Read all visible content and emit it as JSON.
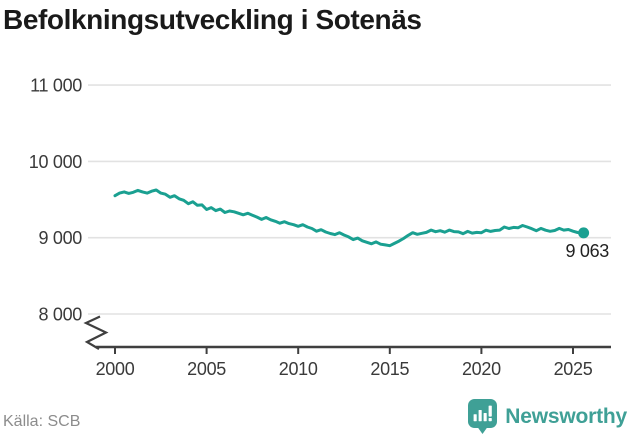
{
  "title": "Befolkningsutveckling i Sotenäs",
  "source": "Källa: SCB",
  "end_label": "9 063",
  "brand": {
    "name": "Newsworthy"
  },
  "colors": {
    "line": "#1aa091",
    "grid": "#e2e2e2",
    "axis": "#3f3f3f",
    "tick_text": "#3a3a3a",
    "title_text": "#1a1a1a",
    "muted_text": "#8c8c8c",
    "brand": "#3fa096"
  },
  "chart_data": {
    "type": "line",
    "title": "Befolkningsutveckling i Sotenäs",
    "series_name": "Befolkning",
    "xlabel": "",
    "ylabel": "",
    "xlim": [
      1999.5,
      2026
    ],
    "ylim": [
      8000,
      11000
    ],
    "axis_break": true,
    "grid": "horizontal",
    "legend": "none",
    "x_ticks": [
      2000,
      2005,
      2010,
      2015,
      2020,
      2025
    ],
    "y_ticks": [
      8000,
      9000,
      10000,
      11000
    ],
    "y_tick_labels": [
      "8 000",
      "9 000",
      "10 000",
      "11 000"
    ],
    "last_value": 9063,
    "last_value_label": "9 063",
    "x": [
      2000,
      2000.25,
      2000.5,
      2000.75,
      2001,
      2001.25,
      2001.5,
      2001.75,
      2002,
      2002.25,
      2002.5,
      2002.75,
      2003,
      2003.25,
      2003.5,
      2003.75,
      2004,
      2004.25,
      2004.5,
      2004.75,
      2005,
      2005.25,
      2005.5,
      2005.75,
      2006,
      2006.25,
      2006.5,
      2006.75,
      2007,
      2007.25,
      2007.5,
      2007.75,
      2008,
      2008.25,
      2008.5,
      2008.75,
      2009,
      2009.25,
      2009.5,
      2009.75,
      2010,
      2010.25,
      2010.5,
      2010.75,
      2011,
      2011.25,
      2011.5,
      2011.75,
      2012,
      2012.25,
      2012.5,
      2012.75,
      2013,
      2013.25,
      2013.5,
      2013.75,
      2014,
      2014.25,
      2014.5,
      2014.75,
      2015,
      2015.25,
      2015.5,
      2015.75,
      2016,
      2016.25,
      2016.5,
      2016.75,
      2017,
      2017.25,
      2017.5,
      2017.75,
      2018,
      2018.25,
      2018.5,
      2018.75,
      2019,
      2019.25,
      2019.5,
      2019.75,
      2020,
      2020.25,
      2020.5,
      2020.75,
      2021,
      2021.25,
      2021.5,
      2021.75,
      2022,
      2022.25,
      2022.5,
      2022.75,
      2023,
      2023.25,
      2023.5,
      2023.75,
      2024,
      2024.25,
      2024.5,
      2024.75,
      2025,
      2025.25,
      2025.58
    ],
    "values": [
      9550,
      9585,
      9600,
      9580,
      9595,
      9620,
      9600,
      9585,
      9610,
      9625,
      9585,
      9570,
      9530,
      9550,
      9510,
      9490,
      9445,
      9470,
      9425,
      9430,
      9370,
      9395,
      9355,
      9375,
      9330,
      9350,
      9340,
      9320,
      9300,
      9320,
      9295,
      9270,
      9240,
      9265,
      9235,
      9215,
      9190,
      9210,
      9185,
      9170,
      9150,
      9170,
      9140,
      9120,
      9085,
      9105,
      9075,
      9055,
      9040,
      9065,
      9035,
      9010,
      8975,
      8995,
      8960,
      8940,
      8920,
      8945,
      8915,
      8905,
      8895,
      8925,
      8955,
      8990,
      9030,
      9065,
      9045,
      9058,
      9070,
      9100,
      9078,
      9092,
      9072,
      9100,
      9080,
      9076,
      9052,
      9082,
      9060,
      9070,
      9065,
      9098,
      9082,
      9095,
      9100,
      9140,
      9120,
      9135,
      9130,
      9160,
      9140,
      9118,
      9092,
      9122,
      9098,
      9084,
      9095,
      9122,
      9100,
      9108,
      9085,
      9068,
      9063
    ]
  }
}
